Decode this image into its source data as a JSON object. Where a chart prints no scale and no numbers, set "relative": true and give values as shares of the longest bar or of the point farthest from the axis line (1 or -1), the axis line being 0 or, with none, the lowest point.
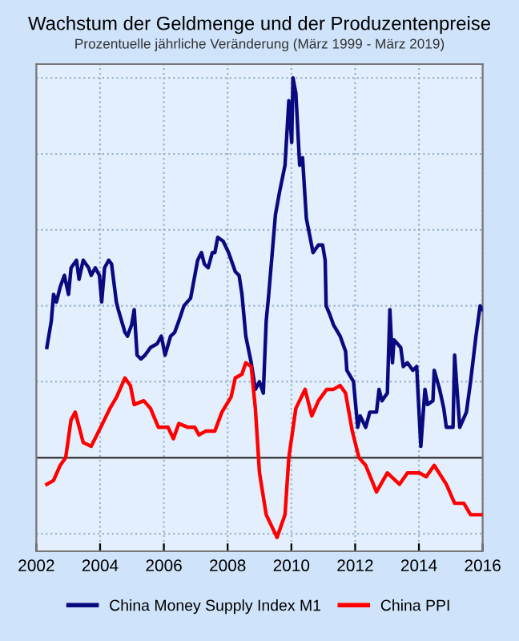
{
  "chart_data": {
    "type": "line",
    "title": "Wachstum der Geldmenge und der Produzentenpreise",
    "subtitle": "Prozentuelle jährliche Veränderung (März 1999 - März 2019)",
    "relative": true,
    "xlim": [
      2002,
      2016
    ],
    "xticks": [
      2002,
      2004,
      2006,
      2008,
      2010,
      2012,
      2014,
      2016
    ],
    "grid": true,
    "legend": "bottom",
    "line_style": "solid",
    "marker": "none",
    "series": [
      {
        "name": "China Money Supply Index M1",
        "color": "#0a0a80",
        "x": [
          2002.33,
          2002.47,
          2002.54,
          2002.63,
          2002.75,
          2002.88,
          2003.01,
          2003.09,
          2003.26,
          2003.34,
          2003.47,
          2003.64,
          2003.72,
          2003.85,
          2003.98,
          2004.05,
          2004.14,
          2004.27,
          2004.36,
          2004.51,
          2004.57,
          2004.78,
          2004.86,
          2004.99,
          2005.07,
          2005.16,
          2005.28,
          2005.41,
          2005.58,
          2005.79,
          2005.92,
          2006.04,
          2006.21,
          2006.34,
          2006.47,
          2006.63,
          2006.84,
          2007.06,
          2007.18,
          2007.27,
          2007.39,
          2007.52,
          2007.6,
          2007.69,
          2007.86,
          2008.03,
          2008.24,
          2008.36,
          2008.45,
          2008.57,
          2008.74,
          2008.87,
          2009.0,
          2009.12,
          2009.21,
          2009.29,
          2009.5,
          2009.63,
          2009.8,
          2009.92,
          2010.01,
          2010.05,
          2010.14,
          2010.26,
          2010.35,
          2010.47,
          2010.68,
          2010.85,
          2010.98,
          2011.06,
          2011.09,
          2011.19,
          2011.32,
          2011.53,
          2011.7,
          2011.74,
          2011.95,
          2012.08,
          2012.16,
          2012.33,
          2012.46,
          2012.67,
          2012.75,
          2012.84,
          2013.01,
          2013.09,
          2013.17,
          2013.22,
          2013.43,
          2013.51,
          2013.64,
          2013.81,
          2013.93,
          2014.06,
          2014.19,
          2014.27,
          2014.44,
          2014.48,
          2014.65,
          2014.78,
          2014.86,
          2015.07,
          2015.12,
          2015.28,
          2015.49,
          2015.62,
          2015.79,
          2015.92,
          2016.0
        ],
        "values": [
          0.29,
          0.36,
          0.43,
          0.41,
          0.45,
          0.48,
          0.43,
          0.5,
          0.52,
          0.47,
          0.52,
          0.5,
          0.48,
          0.5,
          0.48,
          0.41,
          0.5,
          0.52,
          0.51,
          0.41,
          0.39,
          0.33,
          0.32,
          0.35,
          0.39,
          0.27,
          0.26,
          0.27,
          0.29,
          0.3,
          0.32,
          0.27,
          0.32,
          0.33,
          0.36,
          0.4,
          0.42,
          0.52,
          0.54,
          0.51,
          0.5,
          0.54,
          0.54,
          0.58,
          0.57,
          0.54,
          0.49,
          0.48,
          0.43,
          0.32,
          0.25,
          0.18,
          0.2,
          0.17,
          0.36,
          0.43,
          0.64,
          0.7,
          0.77,
          0.94,
          0.83,
          1.0,
          0.96,
          0.77,
          0.79,
          0.63,
          0.54,
          0.56,
          0.56,
          0.52,
          0.4,
          0.38,
          0.35,
          0.32,
          0.28,
          0.23,
          0.2,
          0.08,
          0.11,
          0.08,
          0.12,
          0.12,
          0.18,
          0.15,
          0.17,
          0.39,
          0.25,
          0.31,
          0.29,
          0.24,
          0.25,
          0.23,
          0.24,
          0.03,
          0.18,
          0.14,
          0.15,
          0.23,
          0.18,
          0.13,
          0.08,
          0.08,
          0.27,
          0.08,
          0.12,
          0.2,
          0.32,
          0.4,
          0.39
        ]
      },
      {
        "name": "China PPI",
        "color": "#ff0000",
        "x": [
          2002.33,
          2002.54,
          2002.75,
          2002.92,
          2003.09,
          2003.22,
          2003.47,
          2003.72,
          2004.02,
          2004.31,
          2004.52,
          2004.78,
          2004.95,
          2005.07,
          2005.37,
          2005.58,
          2005.83,
          2006.13,
          2006.3,
          2006.47,
          2006.76,
          2006.97,
          2007.1,
          2007.31,
          2007.6,
          2007.82,
          2008.11,
          2008.24,
          2008.45,
          2008.57,
          2008.74,
          2008.87,
          2009.0,
          2009.21,
          2009.55,
          2009.8,
          2009.92,
          2010.14,
          2010.43,
          2010.64,
          2010.85,
          2011.11,
          2011.32,
          2011.53,
          2011.7,
          2011.91,
          2012.12,
          2012.33,
          2012.67,
          2013.01,
          2013.39,
          2013.64,
          2014.02,
          2014.23,
          2014.48,
          2014.86,
          2015.12,
          2015.41,
          2015.62,
          2016.0
        ],
        "values": [
          -0.07,
          -0.06,
          -0.02,
          0.0,
          0.1,
          0.12,
          0.04,
          0.03,
          0.08,
          0.13,
          0.16,
          0.21,
          0.19,
          0.14,
          0.15,
          0.13,
          0.08,
          0.08,
          0.05,
          0.09,
          0.08,
          0.08,
          0.06,
          0.07,
          0.07,
          0.12,
          0.16,
          0.21,
          0.22,
          0.25,
          0.24,
          0.13,
          -0.04,
          -0.15,
          -0.21,
          -0.15,
          0.0,
          0.13,
          0.18,
          0.11,
          0.15,
          0.18,
          0.18,
          0.19,
          0.17,
          0.07,
          0.0,
          -0.02,
          -0.09,
          -0.04,
          -0.07,
          -0.04,
          -0.04,
          -0.05,
          -0.02,
          -0.07,
          -0.12,
          -0.12,
          -0.15,
          -0.15
        ]
      }
    ]
  }
}
